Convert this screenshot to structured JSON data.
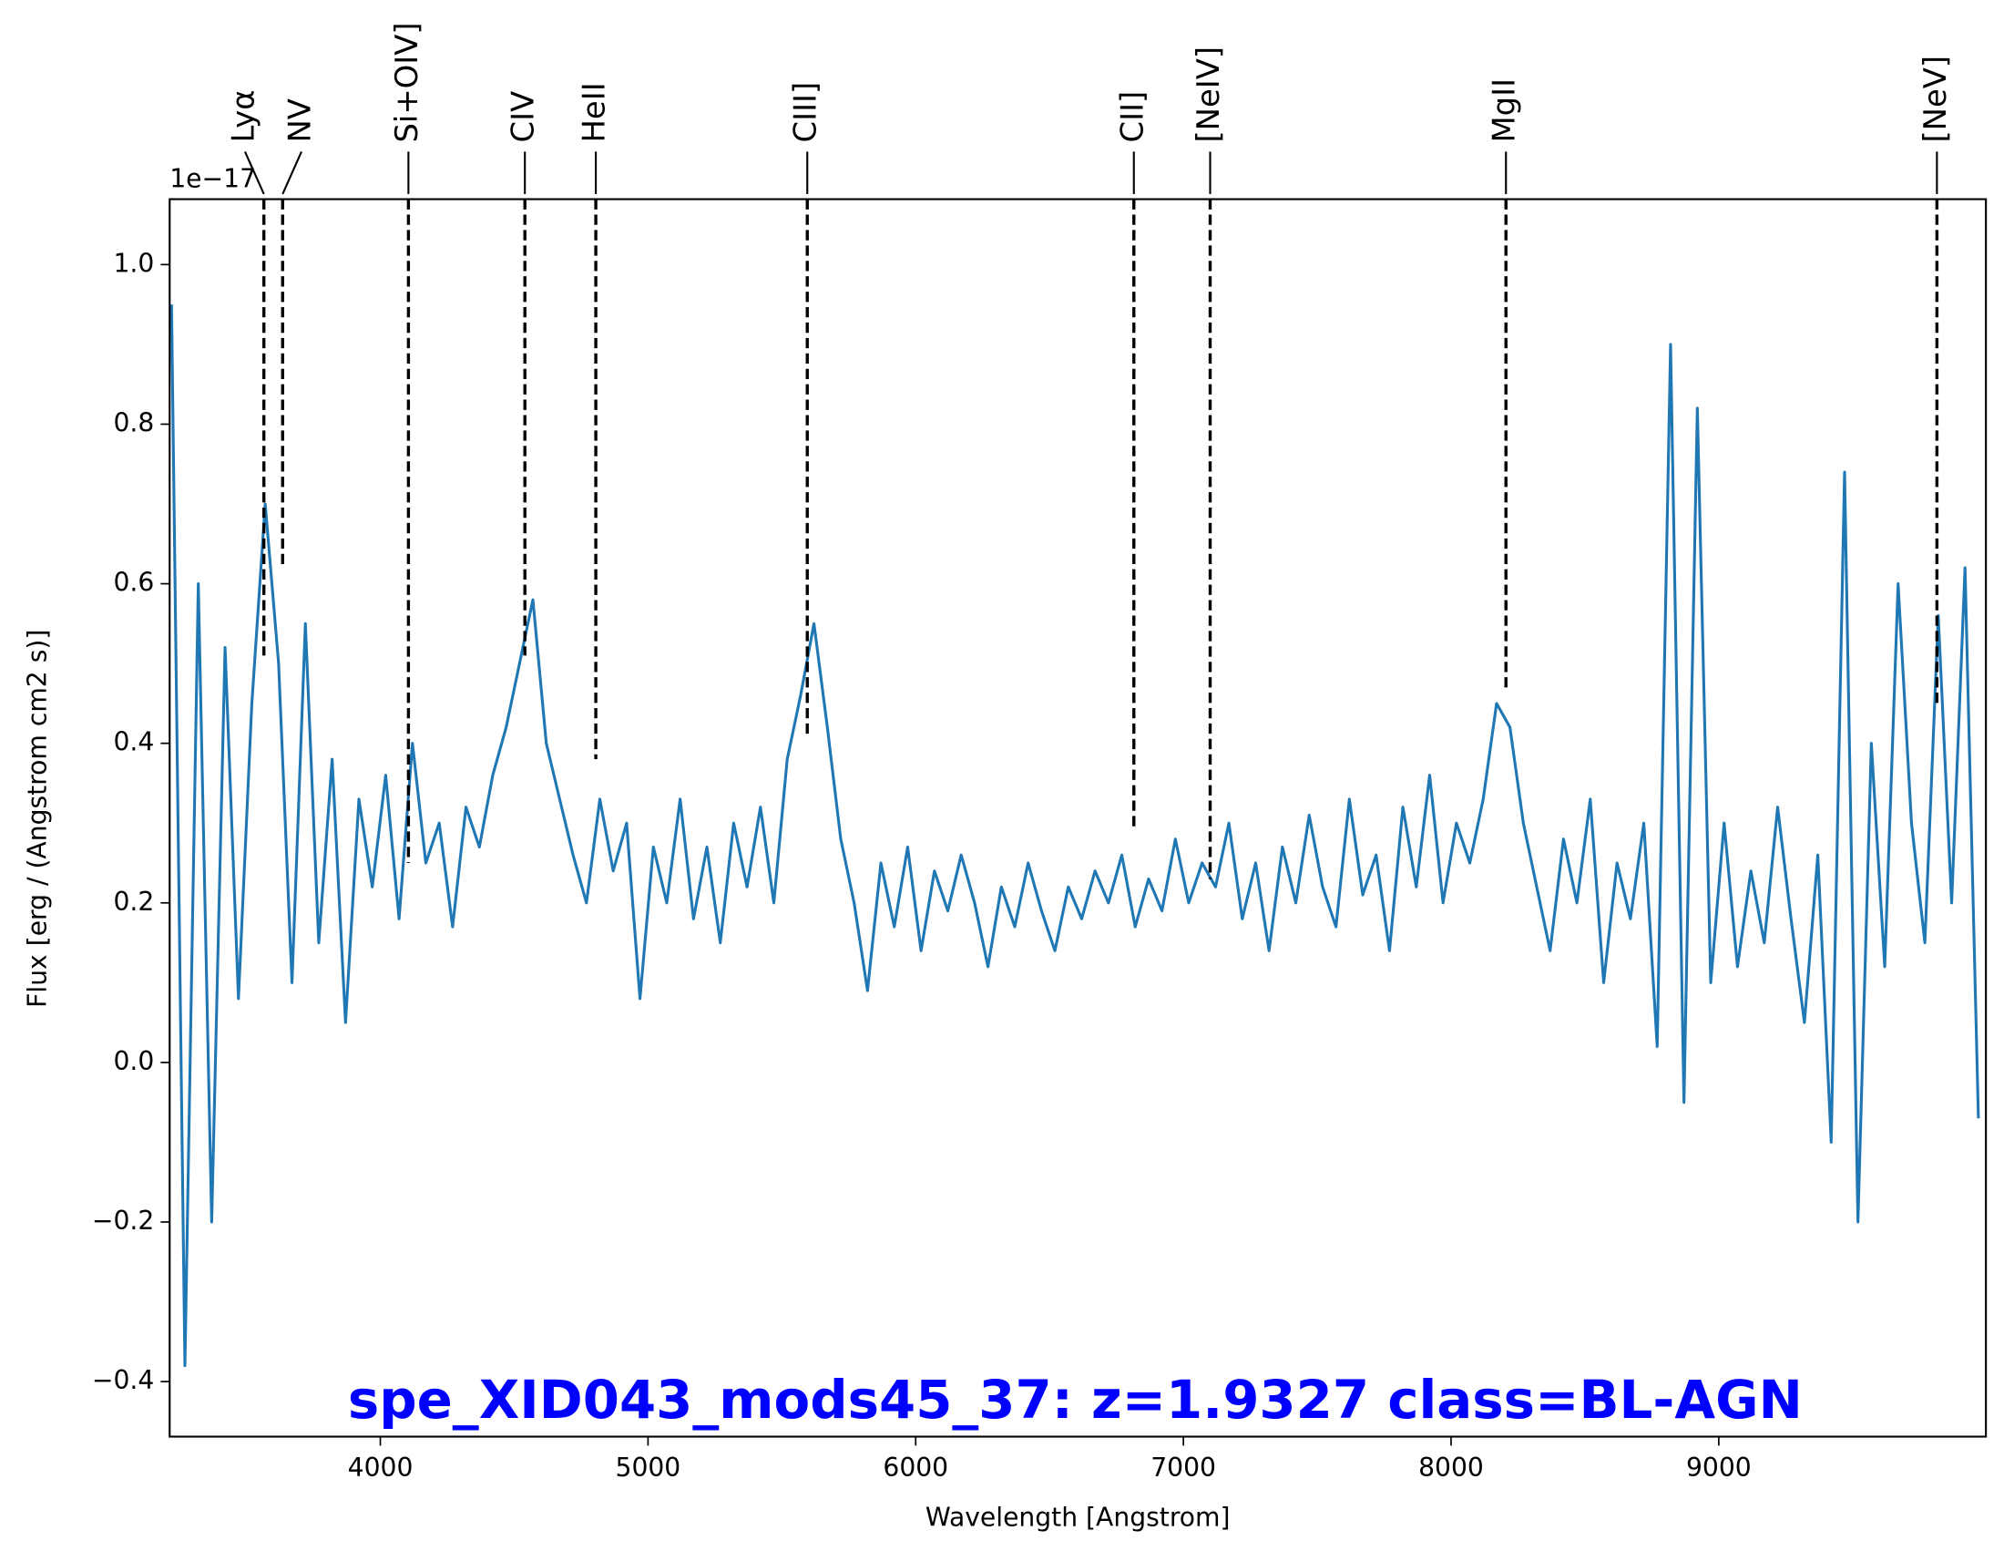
{
  "chart_data": {
    "type": "line",
    "title": "spe_XID043_mods45_37: z=1.9327 class=BL-AGN",
    "xlabel": "Wavelength [Angstrom]",
    "ylabel": "Flux [erg / (Angstrom cm2 s)]",
    "y_offset_label": "1e−17",
    "xlim": [
      3213,
      9998
    ],
    "ylim": [
      -0.469,
      1.082
    ],
    "xticks": [
      4000,
      5000,
      6000,
      7000,
      8000,
      9000
    ],
    "yticks": [
      {
        "value": -0.4,
        "label": "−0.4"
      },
      {
        "value": -0.2,
        "label": "−0.2"
      },
      {
        "value": 0.0,
        "label": "0.0"
      },
      0.2,
      0.4,
      0.6,
      0.8,
      {
        "value": 1.0,
        "label": "1.0"
      }
    ],
    "title_color": "#0000ff",
    "series": [
      {
        "color": "#1f77b4",
        "x": [
          3220,
          3270,
          3320,
          3370,
          3420,
          3470,
          3520,
          3570,
          3620,
          3670,
          3720,
          3770,
          3820,
          3870,
          3920,
          3970,
          4020,
          4070,
          4120,
          4170,
          4220,
          4270,
          4320,
          4370,
          4420,
          4470,
          4520,
          4570,
          4620,
          4670,
          4720,
          4770,
          4820,
          4870,
          4920,
          4970,
          5020,
          5070,
          5120,
          5170,
          5220,
          5270,
          5320,
          5370,
          5420,
          5470,
          5520,
          5570,
          5620,
          5670,
          5720,
          5770,
          5820,
          5870,
          5920,
          5970,
          6020,
          6070,
          6120,
          6170,
          6220,
          6270,
          6320,
          6370,
          6420,
          6470,
          6520,
          6570,
          6620,
          6670,
          6720,
          6770,
          6820,
          6870,
          6920,
          6970,
          7020,
          7070,
          7120,
          7170,
          7220,
          7270,
          7320,
          7370,
          7420,
          7470,
          7520,
          7570,
          7620,
          7670,
          7720,
          7770,
          7820,
          7870,
          7920,
          7970,
          8020,
          8070,
          8120,
          8170,
          8220,
          8270,
          8320,
          8370,
          8420,
          8470,
          8520,
          8570,
          8620,
          8670,
          8720,
          8770,
          8820,
          8870,
          8920,
          8970,
          9020,
          9070,
          9120,
          9170,
          9220,
          9270,
          9320,
          9370,
          9420,
          9470,
          9520,
          9570,
          9620,
          9670,
          9720,
          9770,
          9820,
          9870,
          9920,
          9970
        ],
        "values": [
          0.95,
          -0.38,
          0.6,
          -0.2,
          0.52,
          0.08,
          0.45,
          0.7,
          0.5,
          0.1,
          0.55,
          0.15,
          0.38,
          0.05,
          0.33,
          0.22,
          0.36,
          0.18,
          0.4,
          0.25,
          0.3,
          0.17,
          0.32,
          0.27,
          0.36,
          0.42,
          0.5,
          0.58,
          0.4,
          0.33,
          0.26,
          0.2,
          0.33,
          0.24,
          0.3,
          0.08,
          0.27,
          0.2,
          0.33,
          0.18,
          0.27,
          0.15,
          0.3,
          0.22,
          0.32,
          0.2,
          0.38,
          0.46,
          0.55,
          0.42,
          0.28,
          0.2,
          0.09,
          0.25,
          0.17,
          0.27,
          0.14,
          0.24,
          0.19,
          0.26,
          0.2,
          0.12,
          0.22,
          0.17,
          0.25,
          0.19,
          0.14,
          0.22,
          0.18,
          0.24,
          0.2,
          0.26,
          0.17,
          0.23,
          0.19,
          0.28,
          0.2,
          0.25,
          0.22,
          0.3,
          0.18,
          0.25,
          0.14,
          0.27,
          0.2,
          0.31,
          0.22,
          0.17,
          0.33,
          0.21,
          0.26,
          0.14,
          0.32,
          0.22,
          0.36,
          0.2,
          0.3,
          0.25,
          0.33,
          0.45,
          0.42,
          0.3,
          0.22,
          0.14,
          0.28,
          0.2,
          0.33,
          0.1,
          0.25,
          0.18,
          0.3,
          0.02,
          0.9,
          -0.05,
          0.82,
          0.1,
          0.3,
          0.12,
          0.24,
          0.15,
          0.32,
          0.18,
          0.05,
          0.26,
          -0.1,
          0.74,
          -0.2,
          0.4,
          0.12,
          0.6,
          0.3,
          0.15,
          0.56,
          0.2,
          0.62,
          -0.07
        ]
      }
    ],
    "lines": [
      {
        "label": "Lyα",
        "wavelength": 3565,
        "flux": 0.51
      },
      {
        "label": "NV",
        "wavelength": 3635,
        "flux": 0.62
      },
      {
        "label": "Si+OIV]",
        "wavelength": 4105,
        "flux": 0.25
      },
      {
        "label": "CIV",
        "wavelength": 4540,
        "flux": 0.51
      },
      {
        "label": "HeII",
        "wavelength": 4805,
        "flux": 0.38
      },
      {
        "label": "CIII]",
        "wavelength": 5595,
        "flux": 0.41
      },
      {
        "label": "CII]",
        "wavelength": 6815,
        "flux": 0.29
      },
      {
        "label": "[NeIV]",
        "wavelength": 7100,
        "flux": 0.23
      },
      {
        "label": "MgII",
        "wavelength": 8205,
        "flux": 0.47
      },
      {
        "label": "[NeV]",
        "wavelength": 9815,
        "flux": 0.45
      }
    ]
  }
}
